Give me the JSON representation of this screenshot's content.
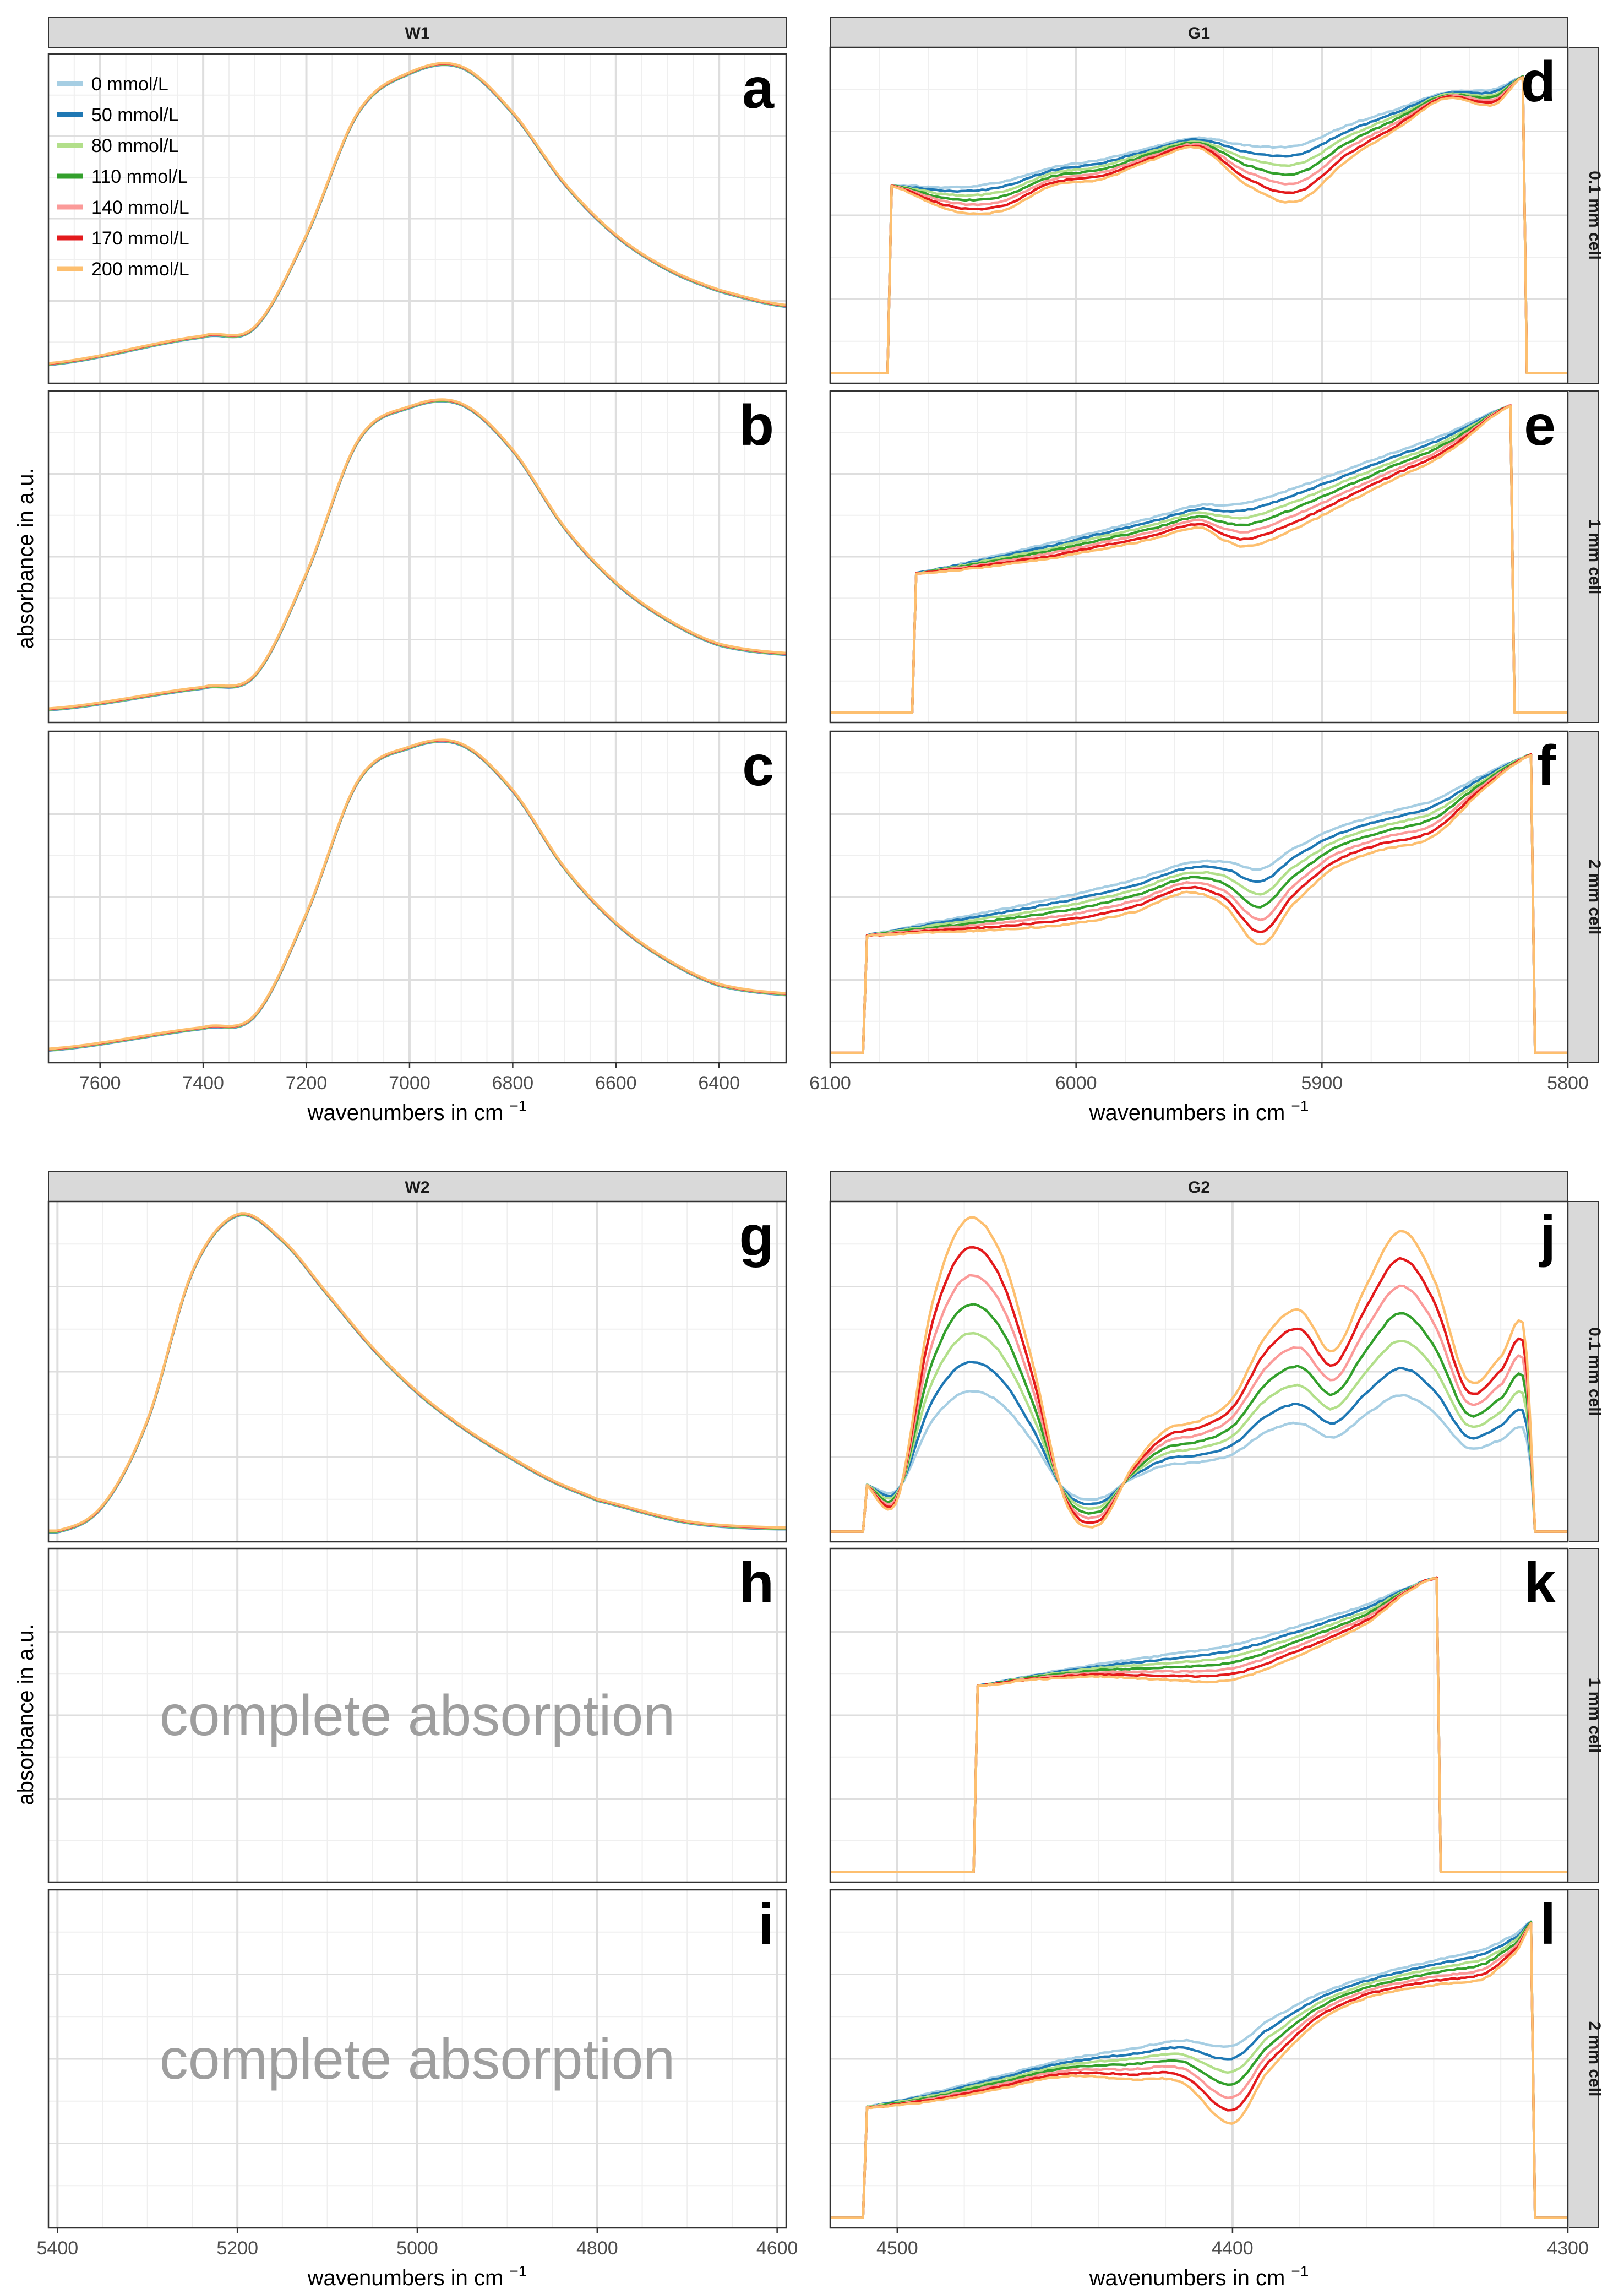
{
  "figure": {
    "y_axis_title": "absorbance in a.u.",
    "x_axis_title_main": "wavenumbers in cm",
    "x_axis_title_sup": "−1",
    "note_complete_absorption": "complete absorption"
  },
  "legend": [
    {
      "label": "0 mmol/L",
      "color": "#a6cee3"
    },
    {
      "label": "50 mmol/L",
      "color": "#1f78b4"
    },
    {
      "label": "80 mmol/L",
      "color": "#b2df8a"
    },
    {
      "label": "110 mmol/L",
      "color": "#33a02c"
    },
    {
      "label": "140 mmol/L",
      "color": "#fb9a99"
    },
    {
      "label": "170 mmol/L",
      "color": "#e31a1c"
    },
    {
      "label": "200 mmol/L",
      "color": "#fdbf6f"
    }
  ],
  "colors": {
    "strip_fill": "#d9d9d9",
    "panel_border": "#333333",
    "grid_major": "#dedede",
    "grid_minor": "#efefef",
    "note_text": "#9e9e9e"
  },
  "chart_data": [
    {
      "type": "line",
      "panel": "a",
      "facet_column": "W1",
      "facet_row": "",
      "xlim": [
        7700,
        6270
      ],
      "x_ticks": [
        "7600",
        "7400",
        "7200",
        "7000",
        "6800",
        "6600",
        "6400"
      ],
      "curve_kind": "single_band",
      "series_values": "all 7 concentrations overlap",
      "x": [
        7700,
        7400,
        7300,
        7200,
        7100,
        7000,
        6900,
        6800,
        6700,
        6600,
        6500,
        6400,
        6270
      ],
      "y": [
        0.03,
        0.12,
        0.15,
        0.45,
        0.85,
        0.98,
        1.0,
        0.85,
        0.62,
        0.45,
        0.34,
        0.27,
        0.22
      ]
    },
    {
      "type": "line",
      "panel": "b",
      "facet_column": "W1",
      "facet_row": "",
      "xlim": [
        7700,
        6270
      ],
      "x_ticks": [
        "7600",
        "7400",
        "7200",
        "7000",
        "6800",
        "6600",
        "6400"
      ],
      "curve_kind": "single_band",
      "x": [
        7700,
        7400,
        7300,
        7200,
        7100,
        7000,
        6900,
        6800,
        6700,
        6600,
        6500,
        6400,
        6270
      ],
      "y": [
        0.01,
        0.08,
        0.12,
        0.45,
        0.88,
        0.99,
        1.0,
        0.85,
        0.6,
        0.42,
        0.3,
        0.22,
        0.19
      ]
    },
    {
      "type": "line",
      "panel": "c",
      "facet_column": "W1",
      "facet_row": "",
      "xlim": [
        7700,
        6270
      ],
      "x_ticks": [
        "7600",
        "7400",
        "7200",
        "7000",
        "6800",
        "6600",
        "6400"
      ],
      "curve_kind": "single_band",
      "x": [
        7700,
        7400,
        7300,
        7200,
        7100,
        7000,
        6900,
        6800,
        6700,
        6600,
        6500,
        6400,
        6270
      ],
      "y": [
        0.01,
        0.08,
        0.12,
        0.45,
        0.88,
        0.99,
        1.0,
        0.85,
        0.6,
        0.42,
        0.3,
        0.22,
        0.19
      ]
    },
    {
      "type": "line",
      "panel": "d",
      "facet_column": "G1",
      "facet_row": "0.1 mm cell",
      "xlim": [
        6100,
        5800
      ],
      "x_ticks": [
        "6100",
        "6000",
        "5900",
        "5800"
      ],
      "curve_kind": "window",
      "window": [
        6076,
        5818
      ],
      "x": [
        6076,
        6050,
        6030,
        6010,
        5990,
        5970,
        5950,
        5930,
        5910,
        5890,
        5870,
        5850,
        5830,
        5818
      ],
      "y": [
        0.6,
        0.52,
        0.52,
        0.6,
        0.62,
        0.68,
        0.72,
        0.6,
        0.55,
        0.68,
        0.78,
        0.88,
        0.86,
        0.95
      ]
    },
    {
      "type": "line",
      "panel": "e",
      "facet_column": "G1",
      "facet_row": "1 mm cell",
      "xlim": [
        6100,
        5800
      ],
      "x_ticks": [
        "6100",
        "6000",
        "5900",
        "5800"
      ],
      "curve_kind": "window",
      "window": [
        6066,
        5822
      ],
      "x": [
        6066,
        6040,
        6010,
        5990,
        5970,
        5950,
        5940,
        5930,
        5910,
        5890,
        5870,
        5850,
        5822
      ],
      "y": [
        0.45,
        0.47,
        0.5,
        0.53,
        0.56,
        0.6,
        0.56,
        0.54,
        0.6,
        0.68,
        0.76,
        0.84,
        1.0
      ]
    },
    {
      "type": "line",
      "panel": "f",
      "facet_column": "G1",
      "facet_row": "2 mm cell",
      "xlim": [
        6100,
        5800
      ],
      "x_ticks": [
        "6100",
        "6000",
        "5900",
        "5800"
      ],
      "curve_kind": "window",
      "window": [
        6086,
        5814
      ],
      "x": [
        6086,
        6060,
        6030,
        6000,
        5975,
        5955,
        5940,
        5925,
        5912,
        5895,
        5875,
        5855,
        5835,
        5814
      ],
      "y": [
        0.38,
        0.39,
        0.4,
        0.42,
        0.46,
        0.52,
        0.48,
        0.35,
        0.48,
        0.6,
        0.66,
        0.7,
        0.85,
        0.97
      ]
    },
    {
      "type": "line",
      "panel": "g",
      "facet_column": "W2",
      "facet_row": "",
      "xlim": [
        5410,
        4590
      ],
      "x_ticks": [
        "5400",
        "5200",
        "5000",
        "4800",
        "4600"
      ],
      "curve_kind": "single_band",
      "x": [
        5400,
        5350,
        5300,
        5250,
        5200,
        5150,
        5100,
        5050,
        5000,
        4950,
        4900,
        4850,
        4800,
        4700,
        4600
      ],
      "y": [
        0.0,
        0.08,
        0.35,
        0.82,
        1.0,
        0.92,
        0.75,
        0.58,
        0.44,
        0.33,
        0.24,
        0.16,
        0.1,
        0.03,
        0.01
      ]
    },
    {
      "type": "line",
      "panel": "h",
      "facet_column": "W2",
      "facet_row": "",
      "xlim": [
        5410,
        4590
      ],
      "x_ticks": [
        "5400",
        "5200",
        "5000",
        "4800",
        "4600"
      ],
      "curve_kind": "empty"
    },
    {
      "type": "line",
      "panel": "i",
      "facet_column": "W2",
      "facet_row": "",
      "xlim": [
        5410,
        4590
      ],
      "x_ticks": [
        "5400",
        "5200",
        "5000",
        "4800",
        "4600"
      ],
      "curve_kind": "empty"
    },
    {
      "type": "line",
      "panel": "j",
      "facet_column": "G2",
      "facet_row": "0.1 mm cell",
      "xlim": [
        4520,
        4300
      ],
      "x_ticks": [
        "4500",
        "4400",
        "4300"
      ],
      "curve_kind": "window",
      "window": [
        4510,
        4310
      ],
      "x": [
        4510,
        4500,
        4490,
        4480,
        4470,
        4460,
        4450,
        4440,
        4430,
        4420,
        4410,
        4400,
        4390,
        4380,
        4370,
        4360,
        4350,
        4340,
        4330,
        4320,
        4313,
        4310
      ],
      "y": [
        0.15,
        0.1,
        0.7,
        0.98,
        0.9,
        0.55,
        0.1,
        0.02,
        0.2,
        0.32,
        0.35,
        0.42,
        0.62,
        0.7,
        0.57,
        0.78,
        0.95,
        0.8,
        0.48,
        0.55,
        0.65,
        0.15
      ]
    },
    {
      "type": "line",
      "panel": "k",
      "facet_column": "G2",
      "facet_row": "1 mm cell",
      "xlim": [
        4520,
        4300
      ],
      "x_ticks": [
        "4500",
        "4400",
        "4300"
      ],
      "curve_kind": "window",
      "window": [
        4476,
        4338
      ],
      "x": [
        4476,
        4460,
        4440,
        4420,
        4400,
        4380,
        4360,
        4345,
        4338
      ],
      "y": [
        0.6,
        0.62,
        0.63,
        0.62,
        0.62,
        0.7,
        0.8,
        0.92,
        0.95
      ]
    },
    {
      "type": "line",
      "panel": "l",
      "facet_column": "G2",
      "facet_row": "2 mm cell",
      "xlim": [
        4520,
        4300
      ],
      "x_ticks": [
        "4500",
        "4400",
        "4300"
      ],
      "curve_kind": "window",
      "window": [
        4510,
        4310
      ],
      "x": [
        4510,
        4490,
        4470,
        4450,
        4430,
        4415,
        4400,
        4390,
        4375,
        4360,
        4340,
        4325,
        4315,
        4310
      ],
      "y": [
        0.35,
        0.37,
        0.41,
        0.45,
        0.44,
        0.43,
        0.3,
        0.46,
        0.62,
        0.7,
        0.74,
        0.76,
        0.85,
        0.95
      ]
    }
  ]
}
